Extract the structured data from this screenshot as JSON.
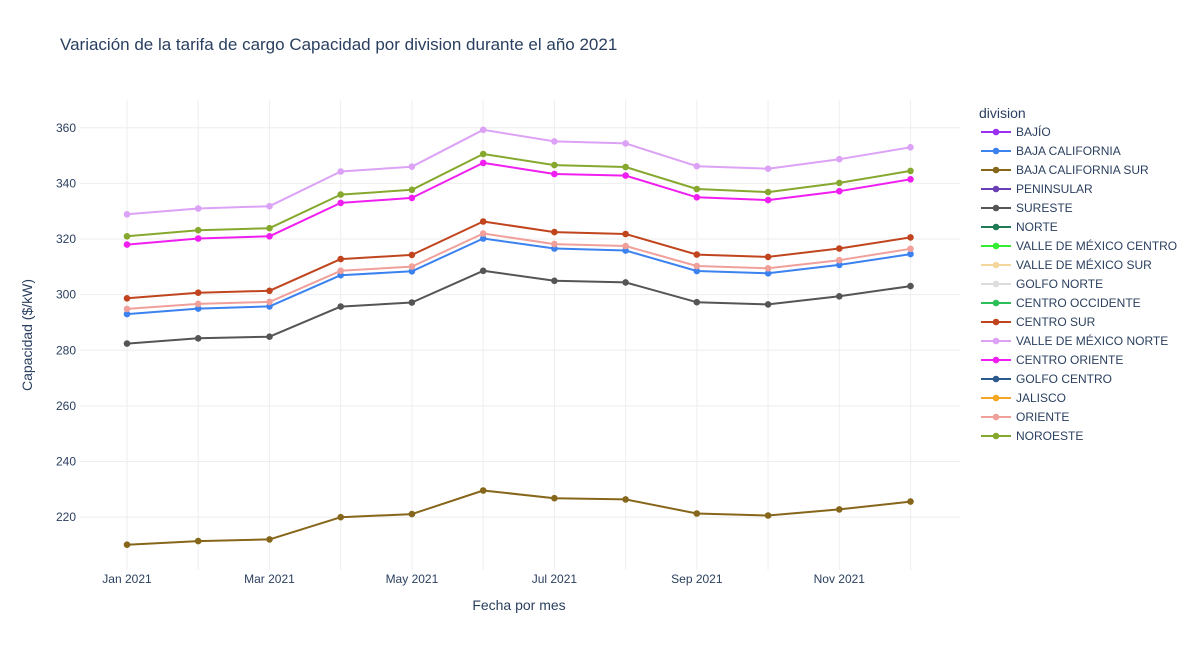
{
  "chart_data": {
    "type": "line",
    "title": "Variación de la tarifa de cargo Capacidad por division durante el año 2021",
    "xlabel": "Fecha por mes",
    "ylabel": "Capacidad ($/kW)",
    "legend_title": "division",
    "legend_position": "right",
    "grid": true,
    "x": [
      "2021-01",
      "2021-02",
      "2021-03",
      "2021-04",
      "2021-05",
      "2021-06",
      "2021-07",
      "2021-08",
      "2021-09",
      "2021-10",
      "2021-11",
      "2021-12"
    ],
    "x_ticks": [
      "Jan 2021",
      "Mar 2021",
      "May 2021",
      "Jul 2021",
      "Sep 2021",
      "Nov 2021"
    ],
    "y_ticks": [
      220,
      240,
      260,
      280,
      300,
      320,
      340,
      360
    ],
    "ylim": [
      201,
      370
    ],
    "series": [
      {
        "name": "BAJÍO",
        "color": "#9a2ff0",
        "values": [
          null,
          null,
          null,
          null,
          null,
          null,
          null,
          null,
          null,
          null,
          null,
          null
        ]
      },
      {
        "name": "BAJA CALIFORNIA",
        "color": "#3b82f0",
        "values": [
          293.0,
          295.0,
          295.8,
          307.0,
          308.4,
          320.2,
          316.6,
          315.9,
          308.5,
          307.7,
          310.7,
          314.6
        ]
      },
      {
        "name": "BAJA CALIFORNIA SUR",
        "color": "#86661a",
        "values": [
          210.1,
          211.4,
          212.0,
          220.0,
          221.1,
          229.6,
          226.8,
          226.4,
          221.3,
          220.6,
          222.8,
          225.6
        ]
      },
      {
        "name": "PENINSULAR",
        "color": "#6a3fb5",
        "values": [
          null,
          null,
          null,
          null,
          null,
          null,
          null,
          null,
          null,
          null,
          null,
          null
        ]
      },
      {
        "name": "SURESTE",
        "color": "#555555",
        "values": [
          282.4,
          284.3,
          284.9,
          295.7,
          297.2,
          308.6,
          305.0,
          304.4,
          297.3,
          296.5,
          299.4,
          303.1
        ]
      },
      {
        "name": "NORTE",
        "color": "#1f7a55",
        "values": [
          null,
          null,
          null,
          null,
          null,
          null,
          null,
          null,
          null,
          null,
          null,
          null
        ]
      },
      {
        "name": "VALLE DE MÉXICO CENTRO",
        "color": "#33ee33",
        "values": [
          null,
          null,
          null,
          null,
          null,
          null,
          null,
          null,
          null,
          null,
          null,
          null
        ]
      },
      {
        "name": "VALLE DE MÉXICO SUR",
        "color": "#f5d79e",
        "values": [
          null,
          null,
          null,
          null,
          null,
          null,
          null,
          null,
          null,
          null,
          null,
          null
        ]
      },
      {
        "name": "GOLFO NORTE",
        "color": "#dddddd",
        "values": [
          null,
          null,
          null,
          null,
          null,
          null,
          null,
          null,
          null,
          null,
          null,
          null
        ]
      },
      {
        "name": "CENTRO OCCIDENTE",
        "color": "#2dbf5a",
        "values": [
          null,
          null,
          null,
          null,
          null,
          null,
          null,
          null,
          null,
          null,
          null,
          null
        ]
      },
      {
        "name": "CENTRO SUR",
        "color": "#c0451e",
        "values": [
          298.7,
          300.7,
          301.4,
          312.8,
          314.3,
          326.3,
          322.5,
          321.8,
          314.4,
          313.6,
          316.6,
          320.6
        ]
      },
      {
        "name": "VALLE DE MÉXICO NORTE",
        "color": "#dca2f5",
        "values": [
          328.9,
          331.0,
          331.8,
          344.3,
          346.0,
          359.3,
          355.1,
          354.4,
          346.2,
          345.3,
          348.7,
          353.0
        ]
      },
      {
        "name": "CENTRO ORIENTE",
        "color": "#f01ef0",
        "values": [
          318.0,
          320.2,
          321.0,
          333.0,
          334.8,
          347.4,
          343.4,
          342.8,
          335.0,
          334.0,
          337.2,
          341.5
        ]
      },
      {
        "name": "GOLFO CENTRO",
        "color": "#2c5a8e",
        "values": [
          null,
          null,
          null,
          null,
          null,
          null,
          null,
          null,
          null,
          null,
          null,
          null
        ]
      },
      {
        "name": "JALISCO",
        "color": "#f5a623",
        "values": [
          null,
          null,
          null,
          null,
          null,
          null,
          null,
          null,
          null,
          null,
          null,
          null
        ]
      },
      {
        "name": "ORIENTE",
        "color": "#f0a09a",
        "values": [
          294.9,
          296.7,
          297.4,
          308.6,
          310.1,
          322.0,
          318.2,
          317.5,
          310.3,
          309.5,
          312.4,
          316.5
        ]
      },
      {
        "name": "NOROESTE",
        "color": "#86a82e",
        "values": [
          321.0,
          323.2,
          323.9,
          336.0,
          337.7,
          350.6,
          346.6,
          345.9,
          338.0,
          336.9,
          340.2,
          344.5
        ]
      }
    ]
  }
}
